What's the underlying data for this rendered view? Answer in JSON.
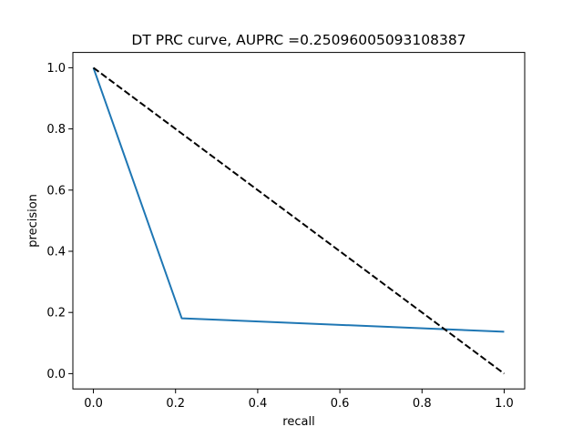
{
  "chart_data": {
    "type": "line",
    "title": "DT PRC curve, AUPRC =0.25096005093108387",
    "xlabel": "recall",
    "ylabel": "precision",
    "xlim": [
      -0.05,
      1.05
    ],
    "ylim": [
      -0.05,
      1.05
    ],
    "xticks": [
      0.0,
      0.2,
      0.4,
      0.6,
      0.8,
      1.0
    ],
    "yticks": [
      0.0,
      0.2,
      0.4,
      0.6,
      0.8,
      1.0
    ],
    "xtick_labels": [
      "0.0",
      "0.2",
      "0.4",
      "0.6",
      "0.8",
      "1.0"
    ],
    "ytick_labels": [
      "0.0",
      "0.2",
      "0.4",
      "0.6",
      "0.8",
      "1.0"
    ],
    "grid": false,
    "series": [
      {
        "color": "#1f77b4",
        "style": "solid",
        "x": [
          0.0,
          0.215,
          1.0
        ],
        "y": [
          1.0,
          0.181,
          0.137
        ]
      },
      {
        "color": "#000000",
        "style": "dashed",
        "x": [
          0.0,
          1.0
        ],
        "y": [
          1.0,
          0.0
        ]
      }
    ]
  }
}
